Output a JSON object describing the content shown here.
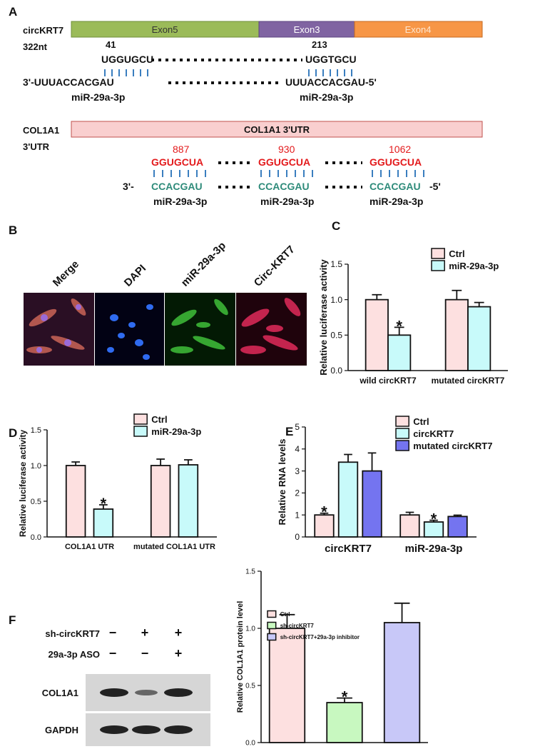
{
  "panel_a": {
    "label": "A",
    "circ": {
      "name": "circKRT7",
      "length": "322nt",
      "exons": [
        "Exon5",
        "Exon3",
        "Exon4"
      ],
      "sites": [
        "41",
        "213"
      ],
      "targets": [
        "UGGUGCU",
        "UGGTGCU"
      ],
      "mirna_left": "3'-UUUACCACGAU",
      "mirna_right": "UUUACCACGAU-5'",
      "mirna_names": [
        "miR-29a-3p",
        "miR-29a-3p"
      ]
    },
    "utr": {
      "name": "COL1A1",
      "region": "3'UTR",
      "bar": "COL1A1 3'UTR",
      "sites": [
        "887",
        "930",
        "1062"
      ],
      "targets": [
        "GGUGCUA",
        "GGUGCUA",
        "GGUGCUA"
      ],
      "prefix": "3'-",
      "suffix": "-5'",
      "mirna": [
        "CCACGAU",
        "CCACGAU",
        "CCACGAU"
      ],
      "mirna_names": [
        "miR-29a-3p",
        "miR-29a-3p",
        "miR-29a-3p"
      ]
    }
  },
  "panel_b": {
    "label": "B",
    "images": [
      "Merge",
      "DAPI",
      "miR-29a-3p",
      "Circ-KRT7"
    ]
  },
  "panel_f_blot": {
    "label": "F",
    "rows": [
      {
        "name": "sh-circKRT7",
        "marks": [
          "−",
          "+",
          "+"
        ]
      },
      {
        "name": "29a-3p ASO",
        "marks": [
          "−",
          "−",
          "+"
        ]
      }
    ],
    "bands": [
      "COL1A1",
      "GAPDH"
    ]
  },
  "chart_data": [
    {
      "type": "bar",
      "label": "C",
      "ylabel": "Relative luciferase activity",
      "categories": [
        "wild circKRT7",
        "mutated circKRT7"
      ],
      "series": [
        {
          "name": "Ctrl",
          "color": "#fde0e0",
          "values": [
            1.0,
            1.0
          ],
          "errors": [
            0.07,
            0.13
          ],
          "significance": [
            null,
            null
          ]
        },
        {
          "name": "miR-29a-3p",
          "color": "#c8fafa",
          "values": [
            0.5,
            0.9
          ],
          "errors": [
            0.11,
            0.06
          ],
          "significance": [
            "*",
            null
          ]
        }
      ],
      "ylim": [
        0,
        1.5
      ],
      "yticks": [
        {
          "value": 0,
          "label": "0.0"
        },
        {
          "value": 0.5,
          "label": "0.5"
        },
        {
          "value": 1,
          "label": "1.0"
        },
        {
          "value": 1.5,
          "label": "1.5"
        }
      ]
    },
    {
      "type": "bar",
      "label": "D",
      "ylabel": "Relative luciferase activity",
      "categories": [
        "COL1A1 UTR",
        "mutated COL1A1 UTR"
      ],
      "series": [
        {
          "name": "Ctrl",
          "color": "#fde0e0",
          "values": [
            1.0,
            1.0
          ],
          "errors": [
            0.05,
            0.09
          ],
          "significance": [
            null,
            null
          ]
        },
        {
          "name": "miR-29a-3p",
          "color": "#c8fafa",
          "values": [
            0.39,
            1.01
          ],
          "errors": [
            0.06,
            0.07
          ],
          "significance": [
            "*",
            null
          ]
        }
      ],
      "ylim": [
        0,
        1.5
      ],
      "yticks": [
        {
          "value": 0,
          "label": "0.0"
        },
        {
          "value": 0.5,
          "label": "0.5"
        },
        {
          "value": 1,
          "label": "1.0"
        },
        {
          "value": 1.5,
          "label": "1.5"
        }
      ]
    },
    {
      "type": "bar",
      "label": "E",
      "ylabel": "Relative RNA levels",
      "categories": [
        "circKRT7",
        "miR-29a-3p"
      ],
      "series": [
        {
          "name": "Ctrl",
          "color": "#fde0e0",
          "values": [
            1.0,
            1.0
          ],
          "errors": [
            0.08,
            0.12
          ],
          "significance": [
            "*",
            null
          ]
        },
        {
          "name": "circKRT7",
          "color": "#c8fafa",
          "values": [
            3.4,
            0.68
          ],
          "errors": [
            0.35,
            0.08
          ],
          "significance": [
            null,
            "*"
          ]
        },
        {
          "name": "mutated circKRT7",
          "color": "#7474f0",
          "values": [
            3.0,
            0.93
          ],
          "errors": [
            0.82,
            0.06
          ],
          "significance": [
            null,
            null
          ]
        }
      ],
      "ylim": [
        0,
        5
      ],
      "yticks": [
        0,
        1,
        2,
        3,
        4,
        5
      ]
    },
    {
      "type": "bar",
      "ylabel": "Relative COL1A1 protein level",
      "categories": [
        null
      ],
      "series": [
        {
          "name": "Ctrl",
          "color": "#fde0e0",
          "values": [
            1.0
          ],
          "errors": [
            0.12
          ],
          "significance": [
            null
          ]
        },
        {
          "name": "sh-circKRT7",
          "color": "#c8f8c0",
          "values": [
            0.35
          ],
          "errors": [
            0.04
          ],
          "significance": [
            "*"
          ]
        },
        {
          "name": "sh-circKRT7+29a-3p inhibitor",
          "color": "#c8c8f8",
          "values": [
            1.05
          ],
          "errors": [
            0.17
          ],
          "significance": [
            null
          ]
        }
      ],
      "ylim": [
        0,
        1.5
      ],
      "yticks": [
        {
          "value": 0,
          "label": "0.0"
        },
        {
          "value": 0.5,
          "label": "0.5"
        },
        {
          "value": 1,
          "label": "1.0"
        },
        {
          "value": 1.5,
          "label": "1.5"
        }
      ]
    }
  ]
}
